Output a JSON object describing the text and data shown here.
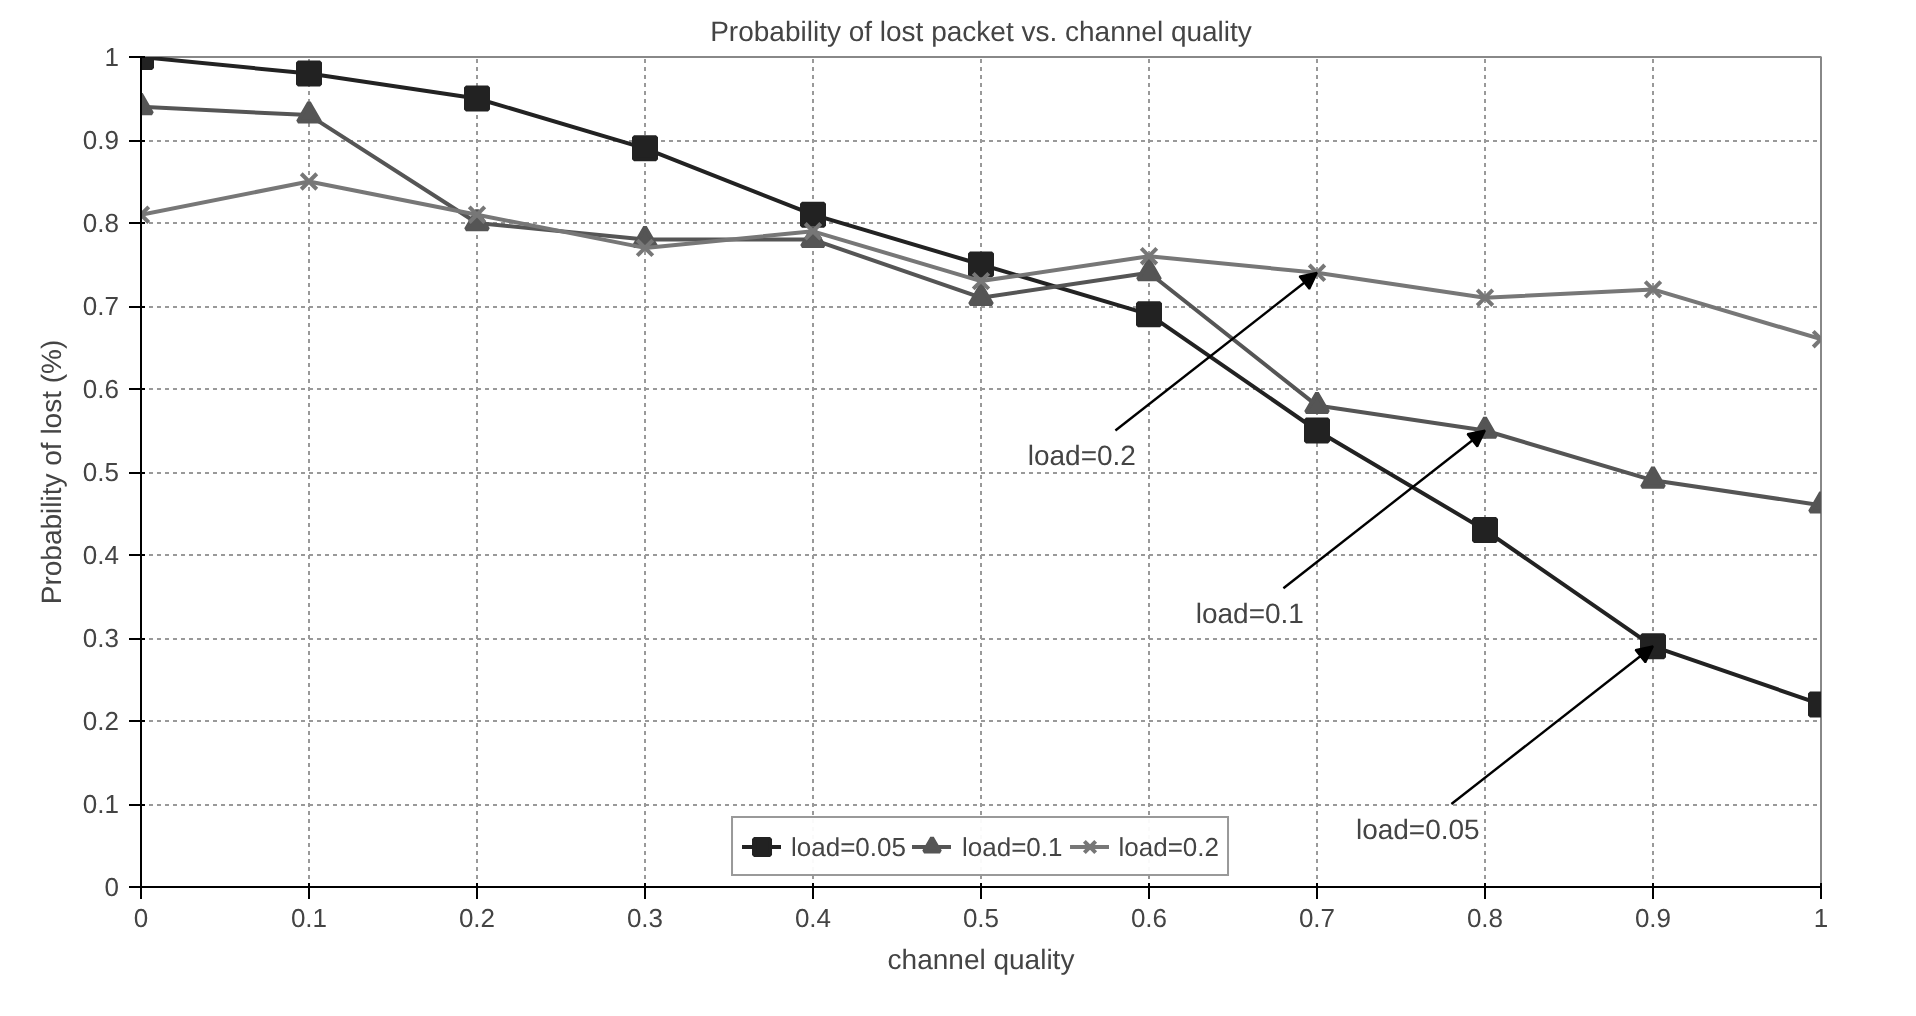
{
  "chart_data": {
    "type": "line",
    "title": "Probability of lost packet vs. channel quality",
    "xlabel": "channel quality",
    "ylabel": "Probability of lost (%)",
    "x": [
      0,
      0.1,
      0.2,
      0.3,
      0.4,
      0.5,
      0.6,
      0.7,
      0.8,
      0.9,
      1
    ],
    "series": [
      {
        "name": "load=0.05",
        "color": "#222222",
        "marker": "square",
        "values": [
          1.0,
          0.98,
          0.95,
          0.89,
          0.81,
          0.75,
          0.69,
          0.55,
          0.43,
          0.29,
          0.22
        ]
      },
      {
        "name": "load=0.1",
        "color": "#555555",
        "marker": "triangle",
        "values": [
          0.94,
          0.93,
          0.8,
          0.78,
          0.78,
          0.71,
          0.74,
          0.58,
          0.55,
          0.49,
          0.46
        ]
      },
      {
        "name": "load=0.2",
        "color": "#777777",
        "marker": "cross",
        "values": [
          0.81,
          0.85,
          0.81,
          0.77,
          0.79,
          0.73,
          0.76,
          0.74,
          0.71,
          0.72,
          0.66
        ]
      }
    ],
    "annotations": [
      {
        "text": "load=0.2",
        "x": 0.7,
        "y": 0.74
      },
      {
        "text": "load=0.1",
        "x": 0.8,
        "y": 0.55
      },
      {
        "text": "load=0.05",
        "x": 0.9,
        "y": 0.29
      }
    ],
    "xlim": [
      0,
      1
    ],
    "ylim": [
      0,
      1
    ],
    "xticks": [
      0,
      0.1,
      0.2,
      0.3,
      0.4,
      0.5,
      0.6,
      0.7,
      0.8,
      0.9,
      1
    ],
    "yticks": [
      0,
      0.1,
      0.2,
      0.3,
      0.4,
      0.5,
      0.6,
      0.7,
      0.8,
      0.9,
      1
    ],
    "grid": true,
    "legend": "bottom",
    "line_style": "solid"
  }
}
